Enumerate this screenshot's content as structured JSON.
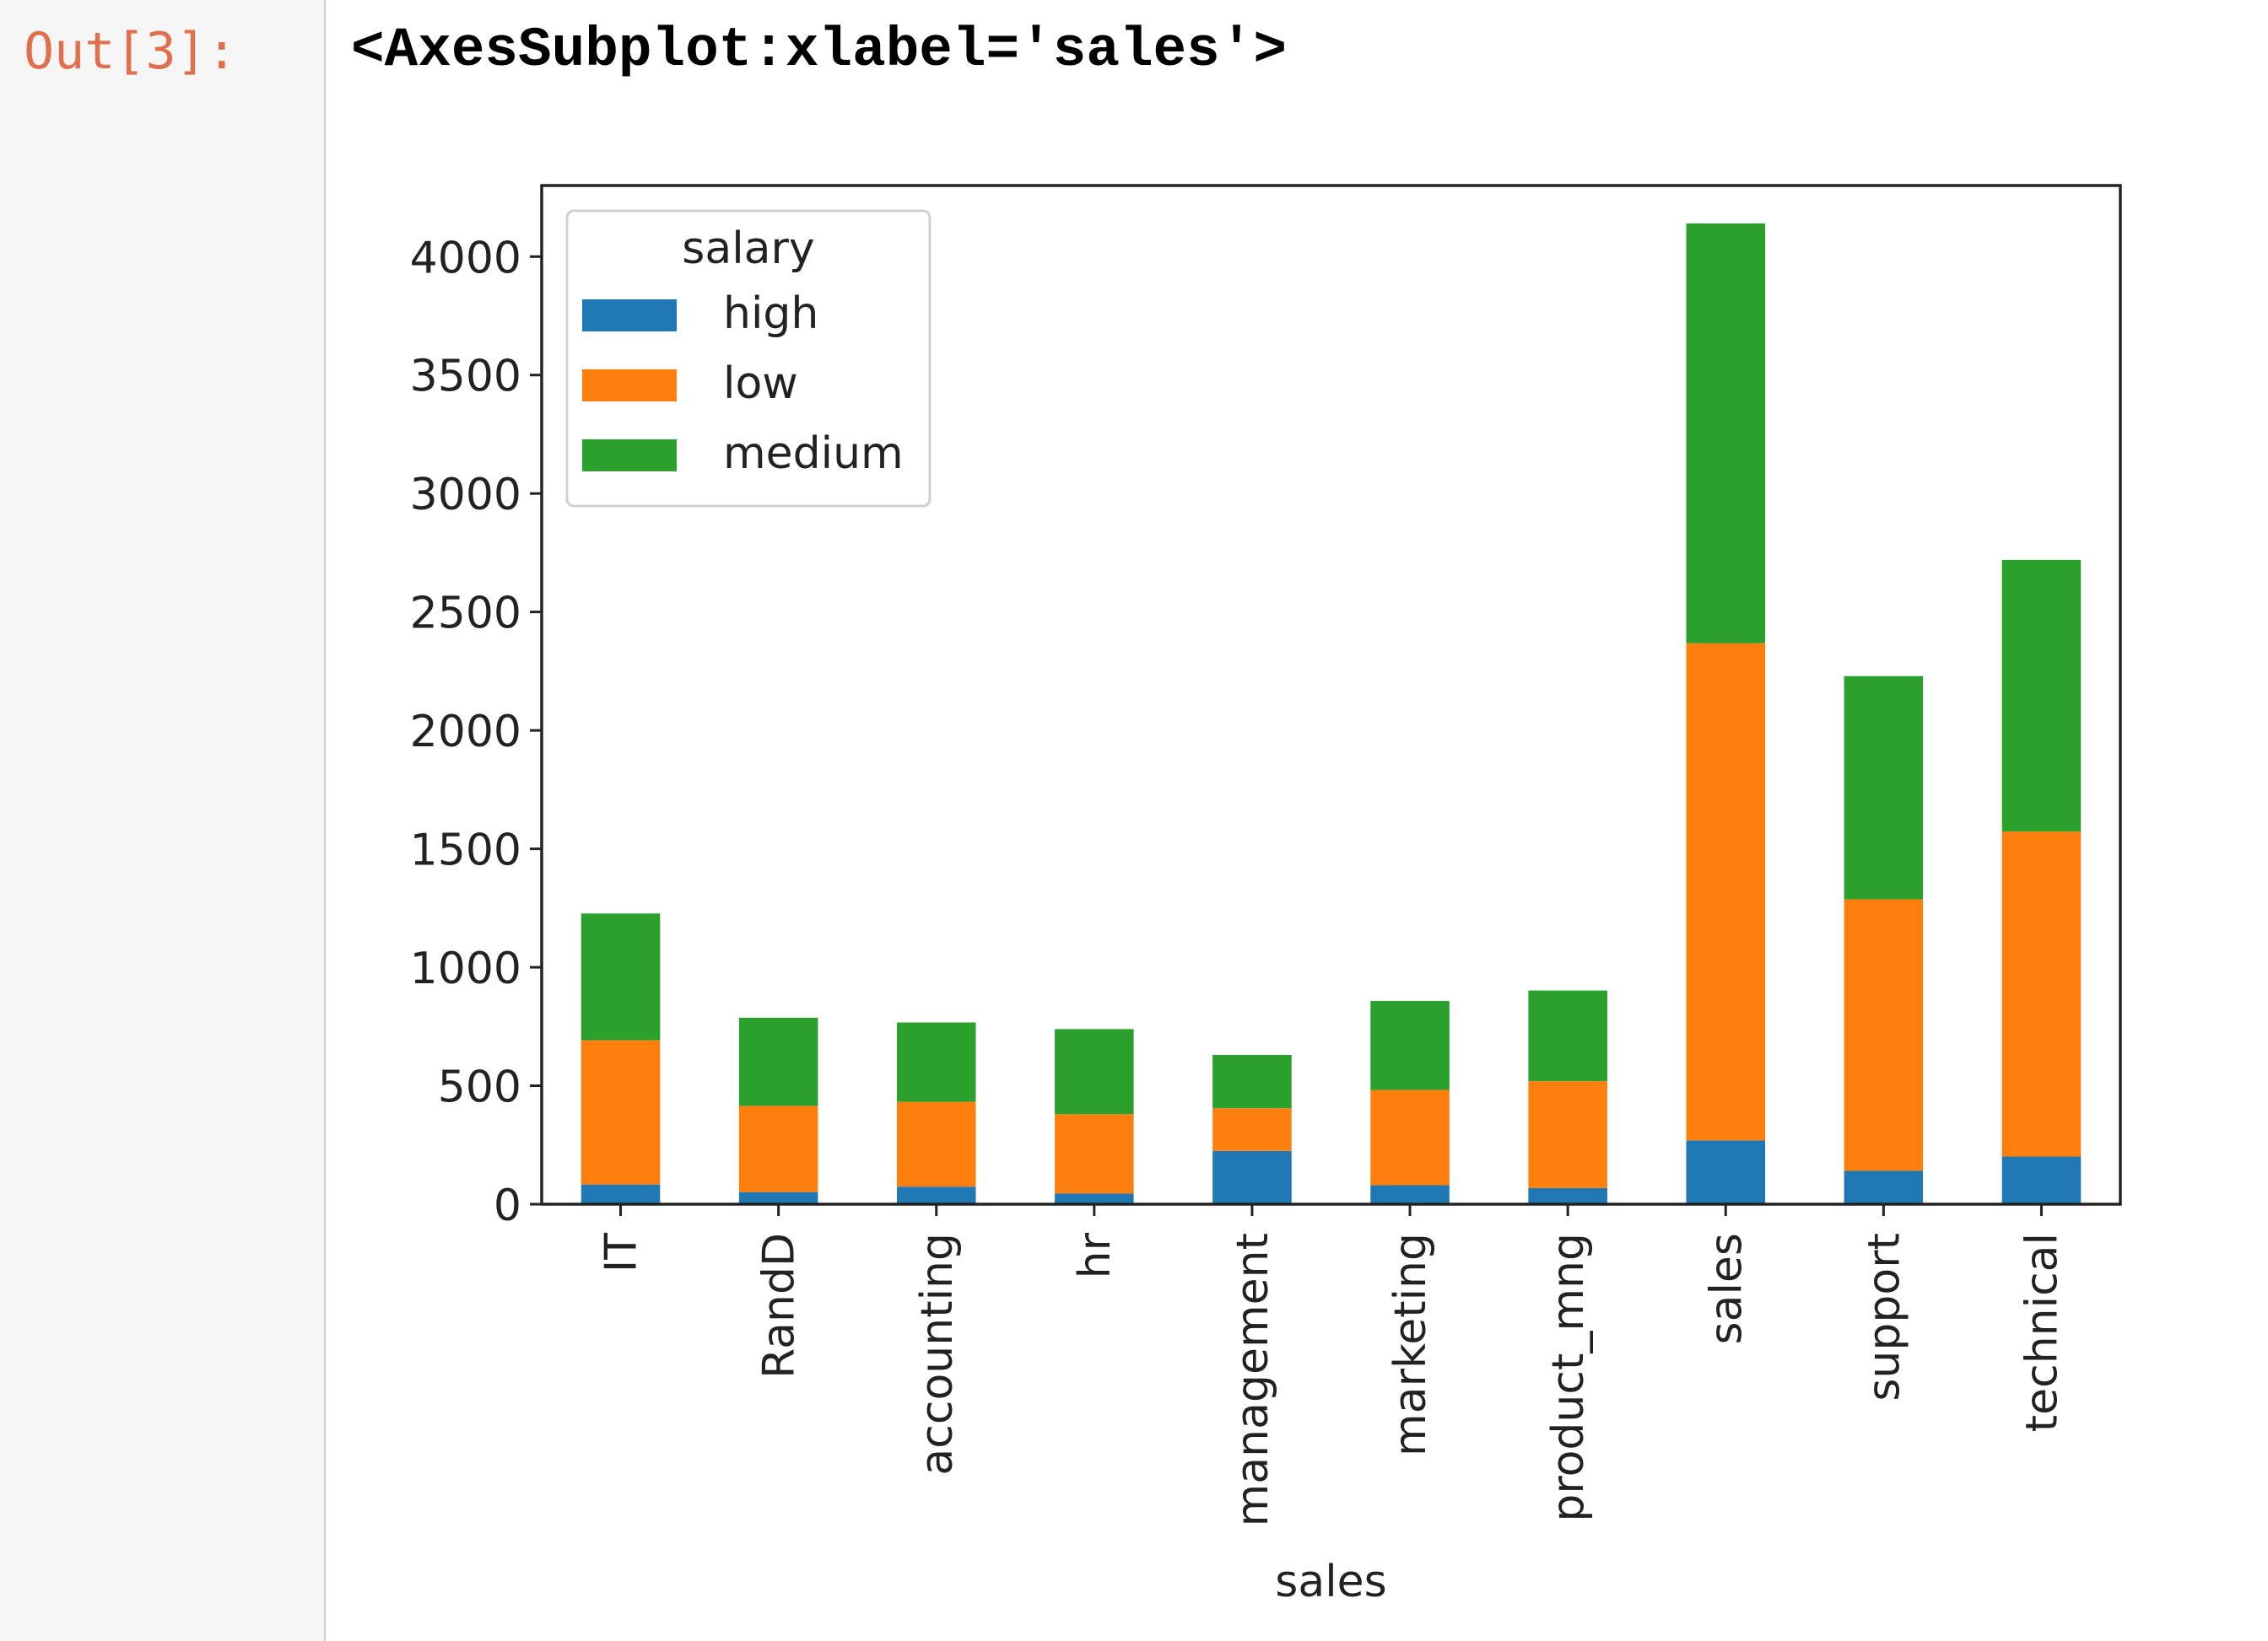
{
  "cell": {
    "prompt": "Out[3]:",
    "repr": "<AxesSubplot:xlabel='sales'>"
  },
  "chart_data": {
    "type": "bar",
    "stacked": true,
    "categories": [
      "IT",
      "RandD",
      "accounting",
      "hr",
      "management",
      "marketing",
      "product_mng",
      "sales",
      "support",
      "technical"
    ],
    "series": [
      {
        "name": "high",
        "color": "#1f77b4",
        "values": [
          83,
          51,
          74,
          45,
          225,
          80,
          68,
          269,
          141,
          201
        ]
      },
      {
        "name": "low",
        "color": "#ff7f0e",
        "values": [
          609,
          364,
          358,
          335,
          180,
          402,
          451,
          2099,
          1146,
          1372
        ]
      },
      {
        "name": "medium",
        "color": "#2ca02c",
        "values": [
          535,
          372,
          335,
          359,
          225,
          376,
          383,
          1772,
          942,
          1147
        ]
      }
    ],
    "xlabel": "sales",
    "ylabel": "",
    "ylim": [
      0,
      4300
    ],
    "yticks": [
      0,
      500,
      1000,
      1500,
      2000,
      2500,
      3000,
      3500,
      4000
    ],
    "legend": {
      "title": "salary",
      "position": "top-left"
    },
    "grid": false
  }
}
